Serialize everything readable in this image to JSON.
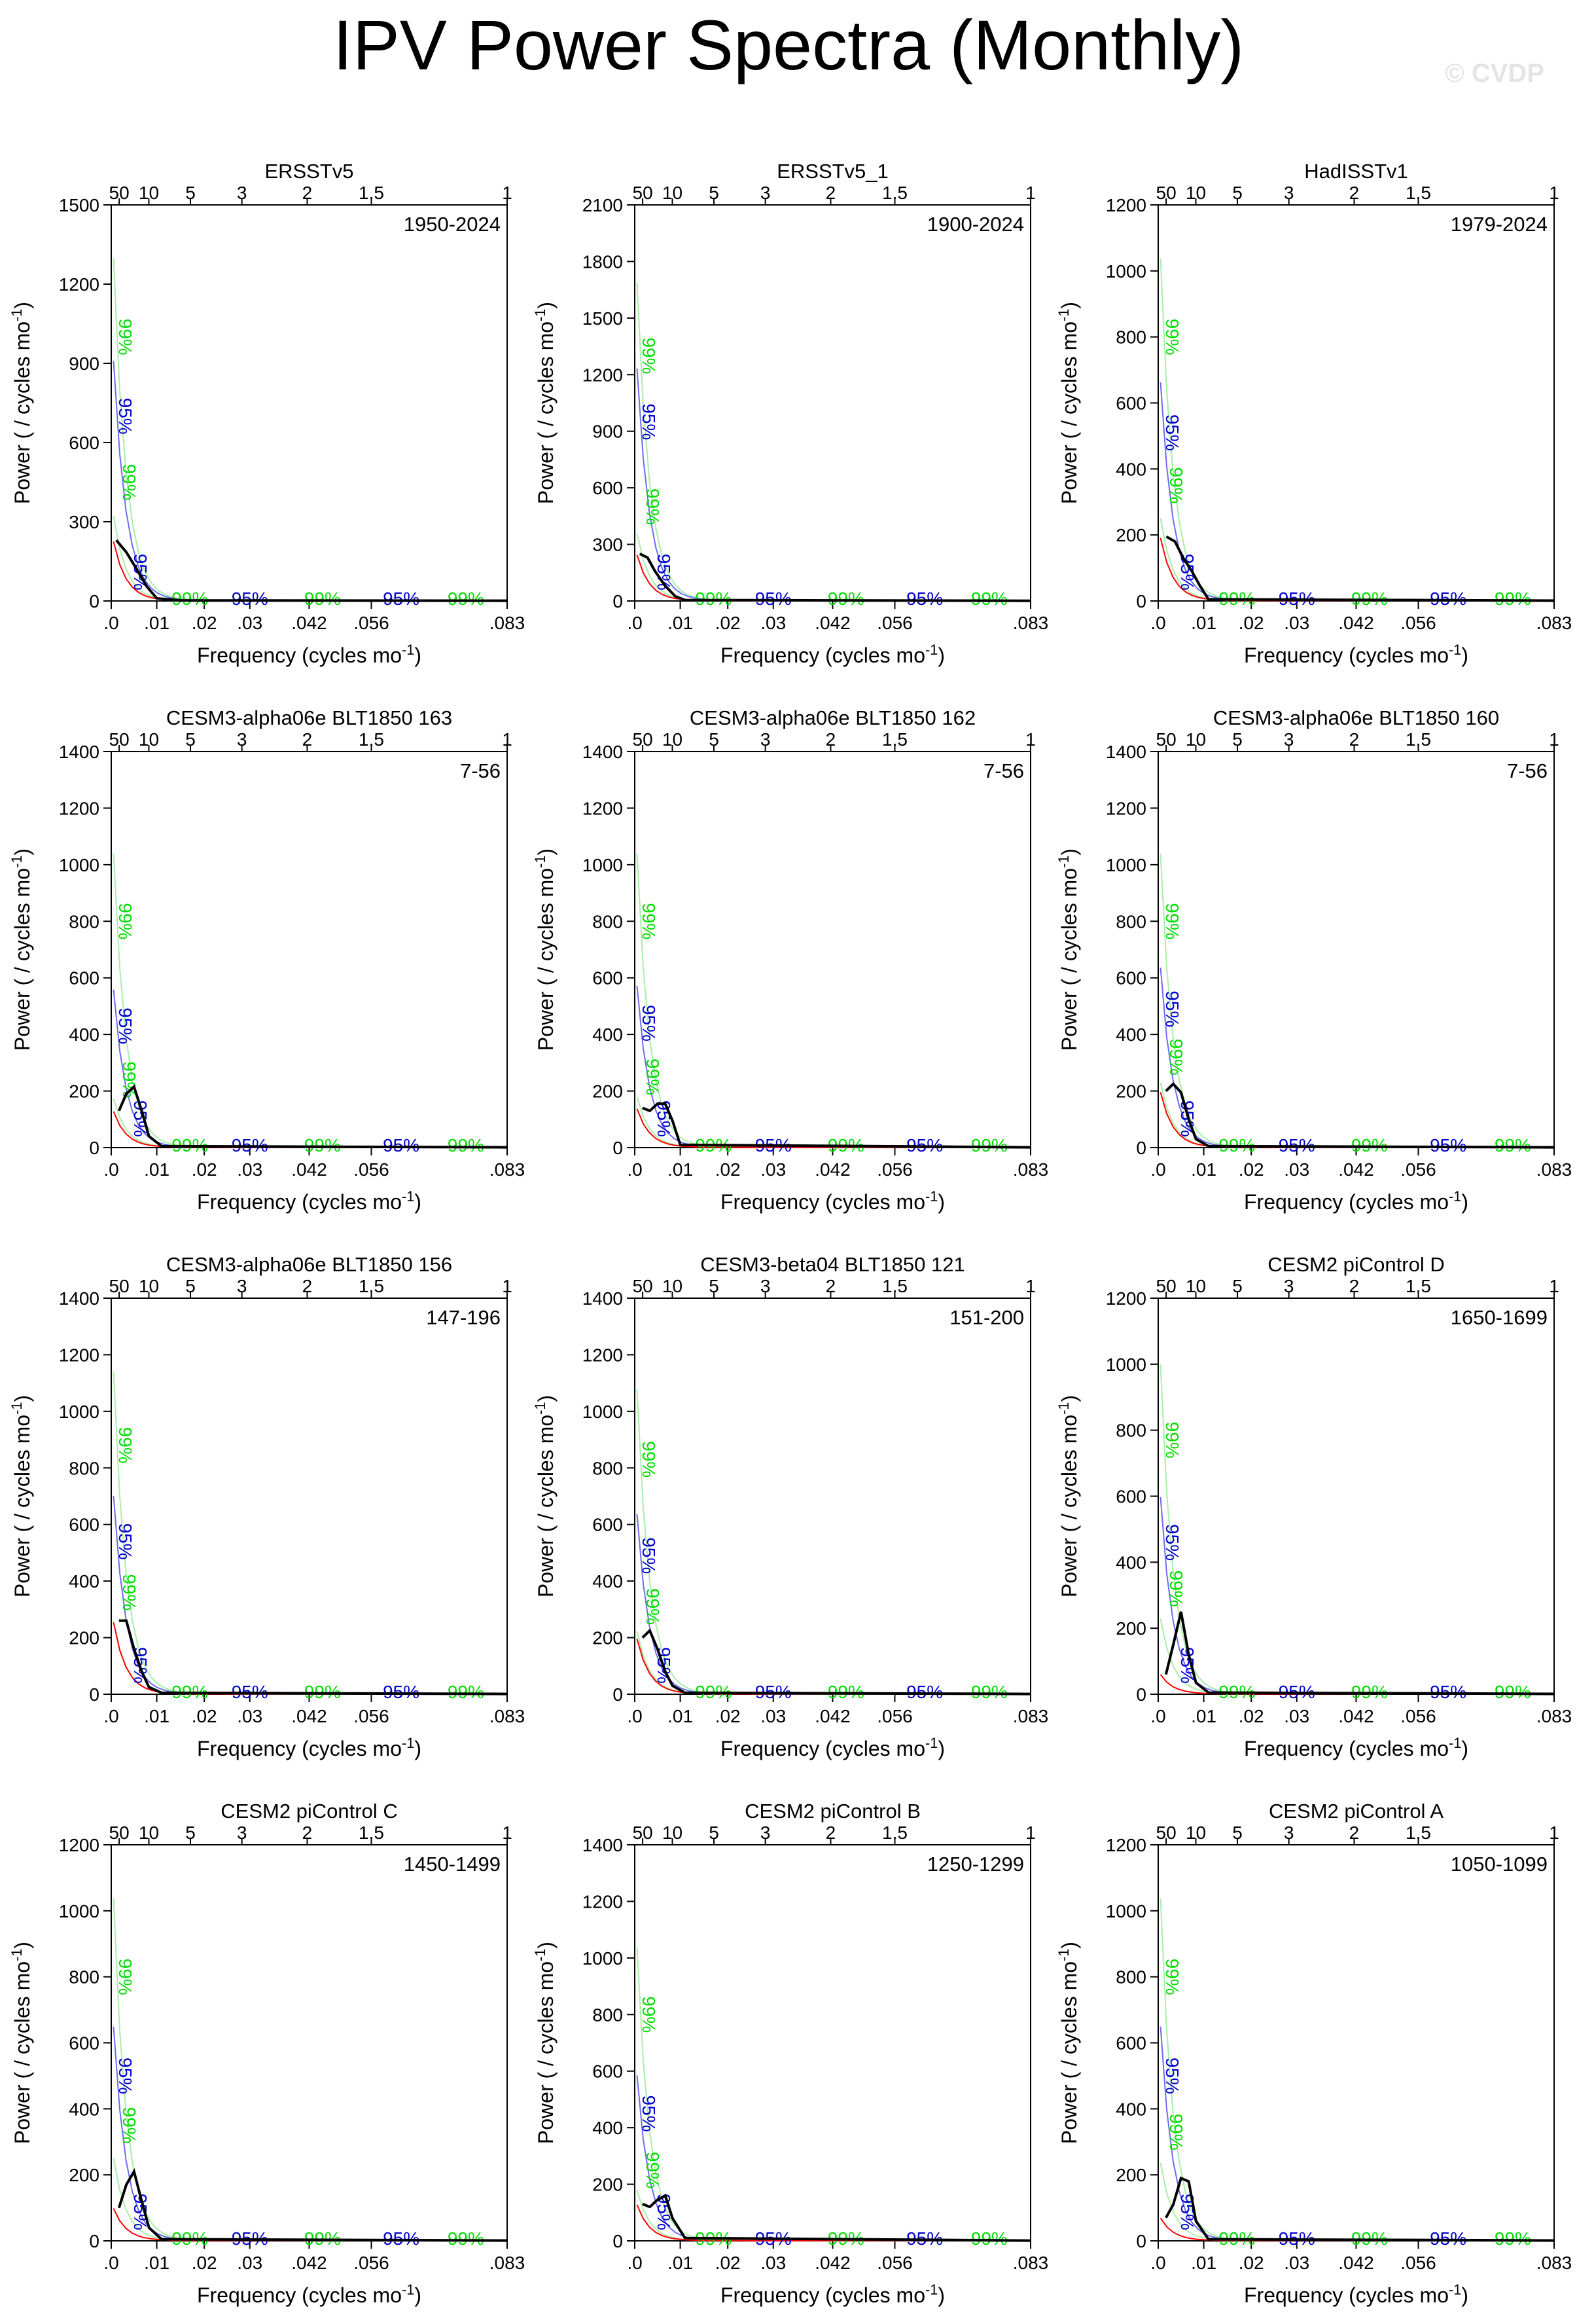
{
  "page": {
    "title": "IPV Power Spectra (Monthly)",
    "watermark": "© CVDP"
  },
  "axes": {
    "xlabel": "Frequency (cycles mo",
    "xlabel_sup": "-1",
    "xlabel_end": ")",
    "ylabel": "Power ( / cycles mo",
    "ylabel_sup": "-1",
    "ylabel_end": ")",
    "xlim": [
      0,
      0.0833
    ],
    "bottom_ticks": [
      ".0",
      ".01",
      ".02",
      ".03",
      ".042",
      ".056",
      ".083"
    ],
    "top_ticks": [
      "50",
      "10",
      "5",
      "3",
      "2",
      "1.5",
      "1"
    ]
  },
  "colors": {
    "spectrum": "#000000",
    "red_noise": "#ff0000",
    "ci95": "#0000cc",
    "ci99": "#00dd00",
    "ci95_light": "#6c6cf0",
    "ci99_light": "#a8eea8"
  },
  "chart_data": [
    {
      "type": "line",
      "title": "ERSSTv5",
      "period": "1950-2024",
      "ylim": [
        0,
        1500
      ],
      "yticks": [
        0,
        300,
        600,
        900,
        1200,
        1500
      ],
      "series": [
        {
          "x": [
            0.0011,
            0.0033,
            0.0056,
            0.0078,
            0.01,
            0.015,
            0.0833
          ],
          "values": [
            230,
            185,
            120,
            55,
            10,
            2,
            1
          ]
        }
      ],
      "ci_labels": {
        "ci99_peak": 1000,
        "ci95_peak": 700,
        "ci99_low": 450
      }
    },
    {
      "type": "line",
      "title": "ERSSTv5_1",
      "period": "1900-2024",
      "ylim": [
        0,
        2100
      ],
      "yticks": [
        0,
        300,
        600,
        900,
        1200,
        1500,
        1800,
        2100
      ],
      "series": [
        {
          "x": [
            0.0011,
            0.0028,
            0.0044,
            0.0067,
            0.0089,
            0.011,
            0.0833
          ],
          "values": [
            250,
            230,
            160,
            80,
            25,
            5,
            1
          ]
        }
      ],
      "ci_labels": {
        "ci99_peak": 1300,
        "ci95_peak": 950,
        "ci99_low": 500
      }
    },
    {
      "type": "line",
      "title": "HadISSTv1",
      "period": "1979-2024",
      "ylim": [
        0,
        1200
      ],
      "yticks": [
        0,
        200,
        400,
        600,
        800,
        1000,
        1200
      ],
      "series": [
        {
          "x": [
            0.0018,
            0.0037,
            0.0055,
            0.0074,
            0.0092,
            0.011,
            0.0833
          ],
          "values": [
            195,
            180,
            130,
            90,
            45,
            5,
            1
          ]
        }
      ],
      "ci_labels": {
        "ci99_peak": 800,
        "ci95_peak": 510,
        "ci99_low": 350
      }
    },
    {
      "type": "line",
      "title": "CESM3-alpha06e BLT1850 163",
      "period": "7-56",
      "ylim": [
        0,
        1400
      ],
      "yticks": [
        0,
        200,
        400,
        600,
        800,
        1000,
        1200,
        1400
      ],
      "series": [
        {
          "x": [
            0.0017,
            0.0033,
            0.005,
            0.0067,
            0.0083,
            0.011,
            0.0833
          ],
          "values": [
            130,
            190,
            215,
            130,
            40,
            5,
            1
          ]
        }
      ],
      "ci_labels": {
        "ci99_peak": 800,
        "ci95_peak": 430,
        "ci99_low": 240
      }
    },
    {
      "type": "line",
      "title": "CESM3-alpha06e BLT1850 162",
      "period": "7-56",
      "ylim": [
        0,
        1400
      ],
      "yticks": [
        0,
        200,
        400,
        600,
        800,
        1000,
        1200,
        1400
      ],
      "series": [
        {
          "x": [
            0.0017,
            0.0033,
            0.005,
            0.0067,
            0.0083,
            0.01,
            0.0833
          ],
          "values": [
            140,
            130,
            155,
            155,
            95,
            10,
            1
          ]
        }
      ],
      "ci_labels": {
        "ci99_peak": 800,
        "ci95_peak": 440,
        "ci99_low": 250
      }
    },
    {
      "type": "line",
      "title": "CESM3-alpha06e BLT1850 160",
      "period": "7-56",
      "ylim": [
        0,
        1400
      ],
      "yticks": [
        0,
        200,
        400,
        600,
        800,
        1000,
        1200,
        1400
      ],
      "series": [
        {
          "x": [
            0.0017,
            0.0033,
            0.005,
            0.0067,
            0.0083,
            0.011,
            0.0833
          ],
          "values": [
            200,
            225,
            195,
            100,
            30,
            5,
            1
          ]
        }
      ],
      "ci_labels": {
        "ci99_peak": 800,
        "ci95_peak": 490,
        "ci99_low": 320
      }
    },
    {
      "type": "line",
      "title": "CESM3-alpha06e BLT1850 156",
      "period": "147-196",
      "ylim": [
        0,
        1400
      ],
      "yticks": [
        0,
        200,
        400,
        600,
        800,
        1000,
        1200,
        1400
      ],
      "series": [
        {
          "x": [
            0.0017,
            0.0033,
            0.005,
            0.0067,
            0.0083,
            0.011,
            0.0833
          ],
          "values": [
            260,
            260,
            160,
            80,
            25,
            5,
            1
          ]
        }
      ],
      "ci_labels": {
        "ci99_peak": 880,
        "ci95_peak": 540,
        "ci99_low": 360
      }
    },
    {
      "type": "line",
      "title": "CESM3-beta04 BLT1850 121",
      "period": "151-200",
      "ylim": [
        0,
        1400
      ],
      "yticks": [
        0,
        200,
        400,
        600,
        800,
        1000,
        1200,
        1400
      ],
      "series": [
        {
          "x": [
            0.0017,
            0.0033,
            0.005,
            0.0067,
            0.0083,
            0.011,
            0.0833
          ],
          "values": [
            200,
            225,
            160,
            80,
            30,
            5,
            1
          ]
        }
      ],
      "ci_labels": {
        "ci99_peak": 830,
        "ci95_peak": 490,
        "ci99_low": 310
      }
    },
    {
      "type": "line",
      "title": "CESM2 piControl D",
      "period": "1650-1699",
      "ylim": [
        0,
        1200
      ],
      "yticks": [
        0,
        200,
        400,
        600,
        800,
        1000,
        1200
      ],
      "series": [
        {
          "x": [
            0.0017,
            0.0033,
            0.005,
            0.0067,
            0.0083,
            0.011,
            0.0833
          ],
          "values": [
            60,
            150,
            250,
            120,
            35,
            5,
            1
          ]
        }
      ],
      "ci_labels": {
        "ci99_peak": 770,
        "ci95_peak": 460,
        "ci99_low": 320
      }
    },
    {
      "type": "line",
      "title": "CESM2 piControl C",
      "period": "1450-1499",
      "ylim": [
        0,
        1200
      ],
      "yticks": [
        0,
        200,
        400,
        600,
        800,
        1000,
        1200
      ],
      "series": [
        {
          "x": [
            0.0017,
            0.0033,
            0.005,
            0.0067,
            0.0083,
            0.011,
            0.0833
          ],
          "values": [
            100,
            170,
            210,
            120,
            40,
            5,
            1
          ]
        }
      ],
      "ci_labels": {
        "ci99_peak": 800,
        "ci95_peak": 500,
        "ci99_low": 350
      }
    },
    {
      "type": "line",
      "title": "CESM2 piControl B",
      "period": "1250-1299",
      "ylim": [
        0,
        1400
      ],
      "yticks": [
        0,
        200,
        400,
        600,
        800,
        1000,
        1200,
        1400
      ],
      "series": [
        {
          "x": [
            0.0017,
            0.0033,
            0.005,
            0.0067,
            0.0083,
            0.011,
            0.0833
          ],
          "values": [
            130,
            120,
            145,
            160,
            80,
            10,
            1
          ]
        }
      ],
      "ci_labels": {
        "ci99_peak": 800,
        "ci95_peak": 450,
        "ci99_low": 250
      }
    },
    {
      "type": "line",
      "title": "CESM2 piControl A",
      "period": "1050-1099",
      "ylim": [
        0,
        1200
      ],
      "yticks": [
        0,
        200,
        400,
        600,
        800,
        1000,
        1200
      ],
      "series": [
        {
          "x": [
            0.0017,
            0.0033,
            0.005,
            0.0067,
            0.0083,
            0.011,
            0.0833
          ],
          "values": [
            70,
            110,
            190,
            180,
            60,
            5,
            1
          ]
        }
      ],
      "ci_labels": {
        "ci99_peak": 800,
        "ci95_peak": 500,
        "ci99_low": 330
      }
    }
  ]
}
